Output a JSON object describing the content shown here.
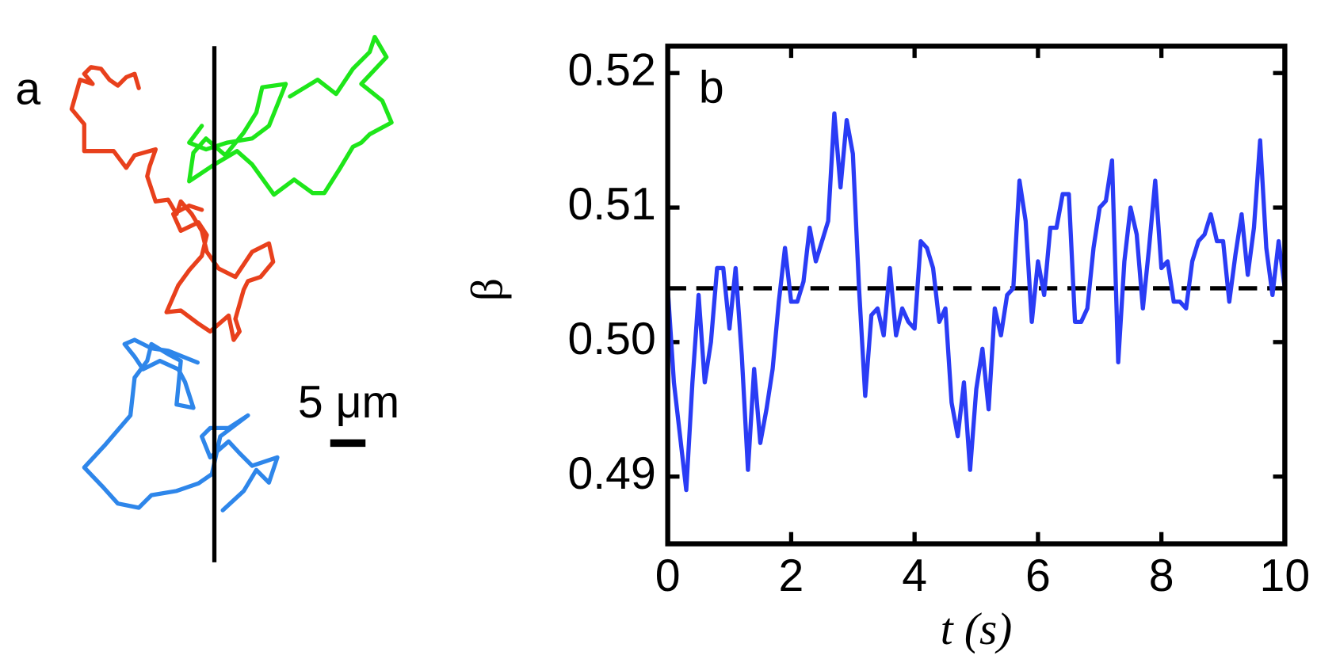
{
  "panel_a": {
    "label": "a",
    "scale_bar_label": "5 μm"
  },
  "chart_data": {
    "type": "line",
    "panel_label": "b",
    "xlabel": "t (s)",
    "ylabel": "β",
    "xlim": [
      0,
      10
    ],
    "ylim": [
      0.485,
      0.522
    ],
    "xticks": [
      0,
      2,
      4,
      6,
      8,
      10
    ],
    "yticks": [
      0.49,
      {
        "value": 0.5,
        "label": "0.50"
      },
      0.51,
      0.52
    ],
    "reference_line": 0.504,
    "reference_color": "#000000",
    "series": [
      {
        "name": "β",
        "color": "#2a3cf5",
        "x": [
          0,
          0.1,
          0.2,
          0.3,
          0.4,
          0.5,
          0.6,
          0.7,
          0.8,
          0.9,
          1,
          1.1,
          1.2,
          1.3,
          1.4,
          1.5,
          1.6,
          1.7,
          1.8,
          1.9,
          2,
          2.1,
          2.2,
          2.3,
          2.4,
          2.5,
          2.6,
          2.7,
          2.8,
          2.9,
          3,
          3.1,
          3.2,
          3.3,
          3.4,
          3.5,
          3.6,
          3.7,
          3.8,
          3.9,
          4,
          4.1,
          4.2,
          4.3,
          4.4,
          4.5,
          4.6,
          4.7,
          4.8,
          4.9,
          5,
          5.1,
          5.2,
          5.3,
          5.4,
          5.5,
          5.6,
          5.7,
          5.8,
          5.9,
          6,
          6.1,
          6.2,
          6.3,
          6.4,
          6.5,
          6.6,
          6.7,
          6.8,
          6.9,
          7,
          7.1,
          7.2,
          7.3,
          7.4,
          7.5,
          7.6,
          7.7,
          7.8,
          7.9,
          8,
          8.1,
          8.2,
          8.3,
          8.4,
          8.5,
          8.6,
          8.7,
          8.8,
          8.9,
          9,
          9.1,
          9.2,
          9.3,
          9.4,
          9.5,
          9.6,
          9.7,
          9.8,
          9.9,
          10
        ],
        "values": [
          0.504,
          0.497,
          0.493,
          0.489,
          0.497,
          0.5035,
          0.497,
          0.5,
          0.5055,
          0.5055,
          0.501,
          0.5055,
          0.499,
          0.4905,
          0.498,
          0.4925,
          0.495,
          0.498,
          0.503,
          0.507,
          0.503,
          0.503,
          0.5045,
          0.5085,
          0.506,
          0.5075,
          0.509,
          0.517,
          0.5115,
          0.5165,
          0.514,
          0.504,
          0.496,
          0.502,
          0.5025,
          0.5005,
          0.5055,
          0.5005,
          0.5025,
          0.5015,
          0.501,
          0.5075,
          0.507,
          0.5055,
          0.5015,
          0.5025,
          0.4955,
          0.493,
          0.497,
          0.4905,
          0.4965,
          0.4995,
          0.495,
          0.5025,
          0.5005,
          0.5035,
          0.504,
          0.512,
          0.509,
          0.5015,
          0.506,
          0.5035,
          0.5085,
          0.5085,
          0.511,
          0.511,
          0.5015,
          0.5015,
          0.5025,
          0.507,
          0.51,
          0.5105,
          0.5135,
          0.4985,
          0.506,
          0.51,
          0.508,
          0.5025,
          0.507,
          0.512,
          0.5055,
          0.506,
          0.503,
          0.503,
          0.5025,
          0.506,
          0.5075,
          0.508,
          0.5095,
          0.5075,
          0.5075,
          0.503,
          0.5065,
          0.5095,
          0.505,
          0.5085,
          0.515,
          0.507,
          0.5035,
          0.5075,
          0.504
        ]
      }
    ]
  }
}
